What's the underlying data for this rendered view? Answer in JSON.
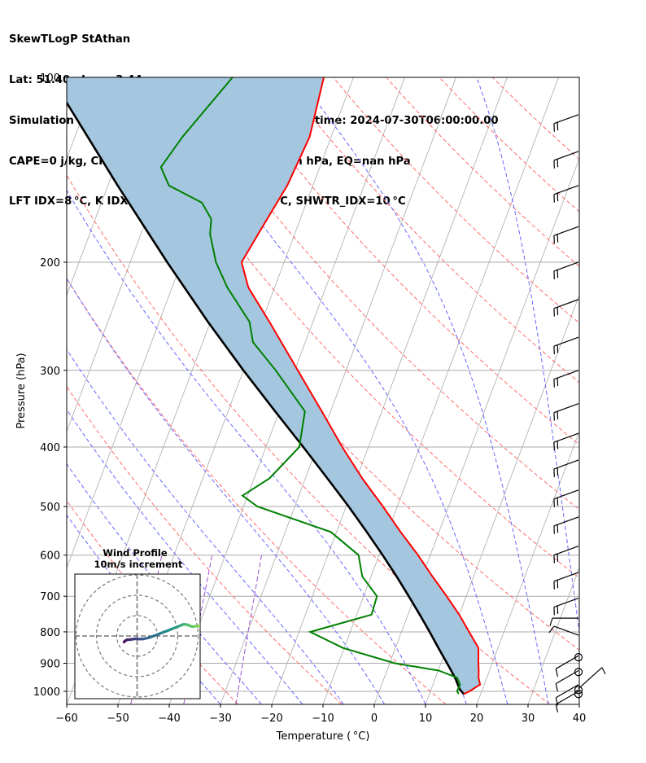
{
  "title_lines": [
    "SkewTLogP StAthan",
    "Lat: 51.40   Lon: -3.44",
    "Simulation start time: 2024-07-30_00:00:00, Valid time: 2024-07-30T06:00:00.00",
    "CAPE=0 j/kg, CIN=0 j/kg, LCL=991 hPa, LFC=nan hPa, EQ=nan hPa",
    "LFT IDX=8 °C, K IDX=18 °C, TOTAL TOTS=34 °C, SHWTR_IDX=10 °C"
  ],
  "chart_data": {
    "type": "skewt",
    "xlabel": "Temperature ( °C)",
    "ylabel": "Pressure (hPa)",
    "xlim": [
      -60,
      40
    ],
    "ylim": [
      1050,
      100
    ],
    "x_ticks": [
      -60,
      -50,
      -40,
      -30,
      -20,
      -10,
      0,
      10,
      20,
      30,
      40
    ],
    "y_ticks": [
      100,
      200,
      300,
      400,
      500,
      600,
      700,
      800,
      900,
      1000
    ],
    "log_pressure": true,
    "skew_deg_per_decade_hpa": 45,
    "grid": true,
    "colors": {
      "temperature": "#ff0000",
      "dewpoint": "#008000",
      "parcel": "#000000",
      "cin_cape_shade": "#a4c6de",
      "dry_adiabats": "#ff6b6b",
      "moist_adiabats": "#6666ff",
      "mixing_ratio": "#9a50c8",
      "isotherms": "#aaaaaa"
    },
    "temperature": {
      "pressure": [
        1010,
        1000,
        975,
        950,
        925,
        900,
        850,
        800,
        750,
        700,
        650,
        600,
        550,
        500,
        450,
        400,
        350,
        300,
        250,
        220,
        200,
        175,
        150,
        125,
        100
      ],
      "temp": [
        16.7,
        17.6,
        19.2,
        18.4,
        17.9,
        17.3,
        16.2,
        13.2,
        10.0,
        6.2,
        2.0,
        -2.4,
        -7.5,
        -12.8,
        -18.9,
        -25.1,
        -31.7,
        -39.4,
        -48.5,
        -55.1,
        -58.3,
        -56.8,
        -55.0,
        -54.2,
        -55.8
      ]
    },
    "dewpoint": {
      "pressure": [
        1010,
        1000,
        975,
        950,
        925,
        900,
        850,
        800,
        750,
        700,
        650,
        600,
        550,
        500,
        480,
        450,
        400,
        350,
        300,
        270,
        250,
        220,
        200,
        180,
        170,
        160,
        150,
        140,
        125,
        100
      ],
      "dewp": [
        15.7,
        15.2,
        15.3,
        14.2,
        10.1,
        1.0,
        -10.2,
        -17.8,
        -7.1,
        -7.4,
        -11.7,
        -14.0,
        -21.1,
        -37.3,
        -41.0,
        -37.0,
        -33.5,
        -35.0,
        -43.7,
        -50.2,
        -52.4,
        -59.2,
        -63.3,
        -66.5,
        -67.4,
        -70.4,
        -78.1,
        -81.0,
        -79.0,
        -73.6
      ]
    },
    "parcel": {
      "pressure": [
        1010,
        991,
        950,
        900,
        850,
        800,
        750,
        700,
        650,
        600,
        550,
        500,
        450,
        400,
        350,
        300,
        250,
        200,
        150,
        100
      ],
      "temp": [
        16.7,
        15.5,
        13.8,
        11.2,
        8.4,
        5.5,
        2.3,
        -1.2,
        -5.0,
        -9.3,
        -14.1,
        -19.5,
        -25.7,
        -32.7,
        -40.8,
        -50.0,
        -60.5,
        -72.8,
        -88.1,
        -109.0
      ]
    },
    "wind_barbs": [
      {
        "p": 1000,
        "dir": 240,
        "kt": 14
      },
      {
        "p": 975,
        "dir": 240,
        "kt": 14
      },
      {
        "p": 925,
        "dir": 240,
        "kt": 14
      },
      {
        "p": 875,
        "dir": 240,
        "kt": 14
      },
      {
        "p": 810,
        "dir": 290,
        "kt": 10
      },
      {
        "p": 760,
        "dir": 270,
        "kt": 10
      },
      {
        "p": 705,
        "dir": 250,
        "kt": 22
      },
      {
        "p": 640,
        "dir": 250,
        "kt": 22
      },
      {
        "p": 580,
        "dir": 250,
        "kt": 22
      },
      {
        "p": 520,
        "dir": 250,
        "kt": 22
      },
      {
        "p": 470,
        "dir": 250,
        "kt": 22
      },
      {
        "p": 420,
        "dir": 250,
        "kt": 22
      },
      {
        "p": 380,
        "dir": 250,
        "kt": 22
      },
      {
        "p": 340,
        "dir": 250,
        "kt": 22
      },
      {
        "p": 300,
        "dir": 250,
        "kt": 22
      },
      {
        "p": 265,
        "dir": 250,
        "kt": 22
      },
      {
        "p": 230,
        "dir": 250,
        "kt": 22
      },
      {
        "p": 200,
        "dir": 250,
        "kt": 22
      },
      {
        "p": 175,
        "dir": 250,
        "kt": 22
      },
      {
        "p": 150,
        "dir": 250,
        "kt": 22
      },
      {
        "p": 132,
        "dir": 250,
        "kt": 22
      },
      {
        "p": 115,
        "dir": 250,
        "kt": 22
      }
    ],
    "calm_markers_hpa": [
      880,
      930,
      995,
      1010
    ],
    "wind_profile_inset": {
      "title": "Wind Profile",
      "subtitle": "10m/s increment",
      "rings": 3,
      "hodograph_u": [
        -6.4,
        -6.0,
        -5.0,
        -3.0,
        -1.0,
        1.0,
        3.0,
        6.0,
        9.0,
        12.0,
        15.0,
        18.0,
        21.0,
        23.0,
        25.0,
        27.0,
        29.0,
        31.0,
        33.0,
        35.0,
        36.5,
        37.5
      ],
      "hodograph_v": [
        -3.0,
        -2.5,
        -1.9,
        -1.7,
        -1.4,
        -1.5,
        -1.5,
        -0.8,
        0.3,
        1.5,
        2.6,
        3.8,
        5.0,
        5.8,
        5.4,
        4.6,
        4.8,
        4.9,
        4.7,
        4.2,
        4.4,
        3.9
      ]
    }
  }
}
